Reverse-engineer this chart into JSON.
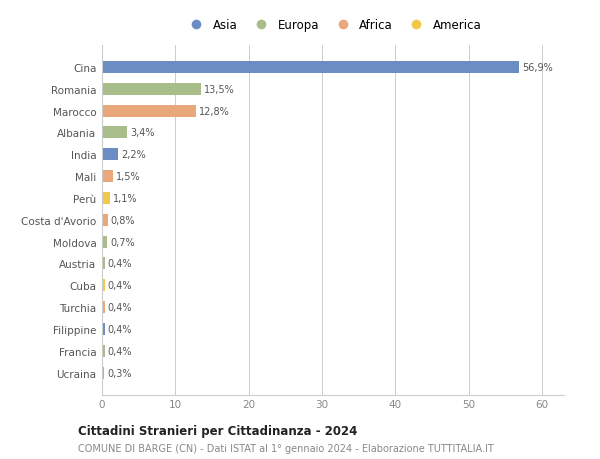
{
  "categories": [
    "Cina",
    "Romania",
    "Marocco",
    "Albania",
    "India",
    "Mali",
    "Perù",
    "Costa d'Avorio",
    "Moldova",
    "Austria",
    "Cuba",
    "Turchia",
    "Filippine",
    "Francia",
    "Ucraina"
  ],
  "values": [
    56.9,
    13.5,
    12.8,
    3.4,
    2.2,
    1.5,
    1.1,
    0.8,
    0.7,
    0.4,
    0.4,
    0.4,
    0.4,
    0.4,
    0.3
  ],
  "labels": [
    "56,9%",
    "13,5%",
    "12,8%",
    "3,4%",
    "2,2%",
    "1,5%",
    "1,1%",
    "0,8%",
    "0,7%",
    "0,4%",
    "0,4%",
    "0,4%",
    "0,4%",
    "0,4%",
    "0,3%"
  ],
  "colors": [
    "#6b8dc3",
    "#a9bd8a",
    "#e8a87c",
    "#a9bd8a",
    "#6b8dc3",
    "#e8a87c",
    "#f2c84b",
    "#e8a87c",
    "#a9bd8a",
    "#a9bd8a",
    "#f2c84b",
    "#e8a87c",
    "#6b8dc3",
    "#a9bd8a",
    "#a9bd8a"
  ],
  "legend": [
    {
      "label": "Asia",
      "color": "#6b8dc3"
    },
    {
      "label": "Europa",
      "color": "#a9bd8a"
    },
    {
      "label": "Africa",
      "color": "#e8a87c"
    },
    {
      "label": "America",
      "color": "#f2c84b"
    }
  ],
  "xlim": [
    0,
    63
  ],
  "xticks": [
    0,
    10,
    20,
    30,
    40,
    50,
    60
  ],
  "title": "Cittadini Stranieri per Cittadinanza - 2024",
  "subtitle": "COMUNE DI BARGE (CN) - Dati ISTAT al 1° gennaio 2024 - Elaborazione TUTTITALIA.IT",
  "bg_color": "#ffffff",
  "grid_color": "#cccccc"
}
